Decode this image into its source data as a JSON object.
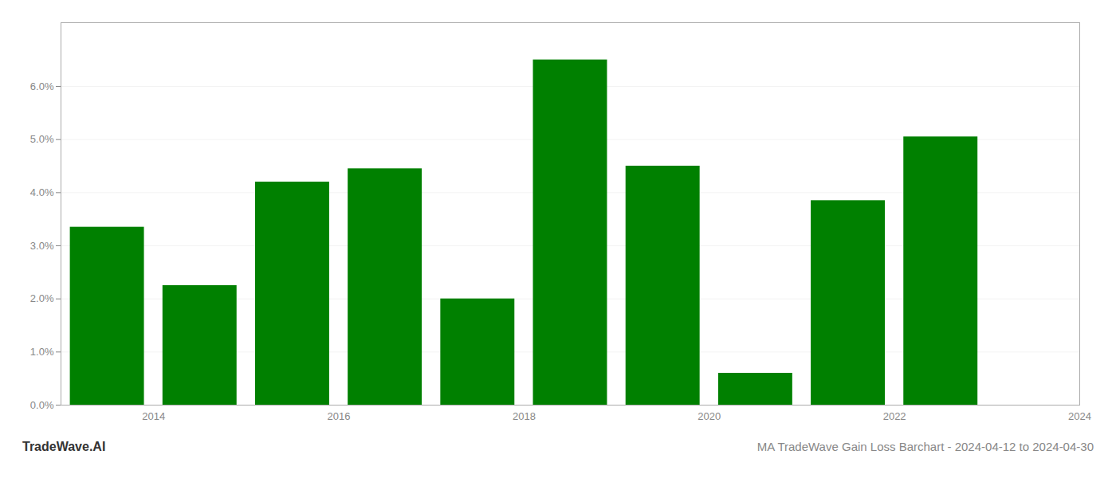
{
  "chart_data": {
    "type": "bar",
    "title": "MA TradeWave Gain Loss Barchart - 2024-04-12 to 2024-04-30",
    "annotations": [
      "TradeWave.AI"
    ],
    "x": [
      2014,
      2015,
      2016,
      2017,
      2018,
      2019,
      2020,
      2021,
      2022,
      2023
    ],
    "values": [
      0.0335,
      0.0225,
      0.042,
      0.0445,
      0.02,
      0.065,
      0.045,
      0.006,
      0.0385,
      0.0505
    ],
    "color": "#008000",
    "xlim": [
      2013.5,
      2024.5
    ],
    "xticks": [
      {
        "value": 2014.5,
        "label": "2014"
      },
      {
        "value": 2016.5,
        "label": "2016"
      },
      {
        "value": 2018.5,
        "label": "2018"
      },
      {
        "value": 2020.5,
        "label": "2020"
      },
      {
        "value": 2022.5,
        "label": "2022"
      },
      {
        "value": 2024.5,
        "label": "2024"
      }
    ],
    "ylim": [
      0,
      0.072
    ],
    "yticks": [
      {
        "value": 0.0,
        "label": "0.0%"
      },
      {
        "value": 0.01,
        "label": "1.0%"
      },
      {
        "value": 0.02,
        "label": "2.0%"
      },
      {
        "value": 0.03,
        "label": "3.0%"
      },
      {
        "value": 0.04,
        "label": "4.0%"
      },
      {
        "value": 0.05,
        "label": "5.0%"
      },
      {
        "value": 0.06,
        "label": "6.0%"
      }
    ],
    "grid": true
  }
}
